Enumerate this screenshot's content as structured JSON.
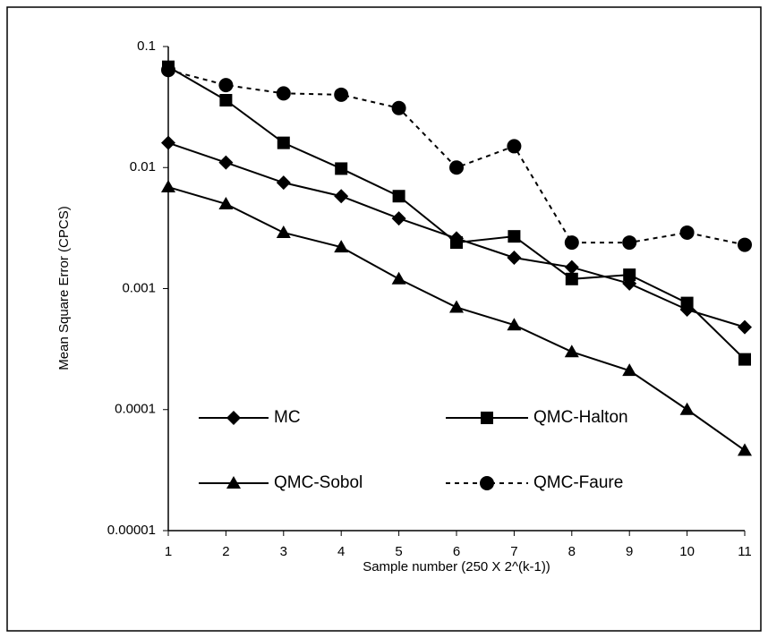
{
  "chart_data": {
    "type": "line",
    "x_label": "Sample number (250 X 2^(k-1))",
    "y_label": "Mean Square Error (CPCS)",
    "x": [
      1,
      2,
      3,
      4,
      5,
      6,
      7,
      8,
      9,
      10,
      11
    ],
    "xlim": [
      1,
      11
    ],
    "xticks": [
      1,
      2,
      3,
      4,
      5,
      6,
      7,
      8,
      9,
      10,
      11
    ],
    "ylim": [
      1e-05,
      0.1
    ],
    "yticks": [
      0.1,
      0.01,
      0.001,
      0.0001,
      1e-05
    ],
    "log_y": true,
    "series": [
      {
        "name": "MC",
        "color": "#000000",
        "marker": "diamond",
        "dashed": false,
        "values": [
          0.016,
          0.011,
          0.0075,
          0.0058,
          0.0038,
          0.0026,
          0.0018,
          0.0015,
          0.0011,
          0.00067,
          0.00048
        ]
      },
      {
        "name": "QMC-Halton",
        "color": "#000000",
        "marker": "square",
        "dashed": false,
        "values": [
          0.068,
          0.036,
          0.016,
          0.0098,
          0.0058,
          0.0024,
          0.0027,
          0.0012,
          0.0013,
          0.00076,
          0.00026
        ]
      },
      {
        "name": "QMC-Sobol",
        "color": "#000000",
        "marker": "triangle",
        "dashed": false,
        "values": [
          0.0069,
          0.005,
          0.0029,
          0.0022,
          0.0012,
          0.0007,
          0.0005,
          0.0003,
          0.00021,
          0.0001,
          4.6e-05
        ]
      },
      {
        "name": "QMC-Faure",
        "color": "#000000",
        "marker": "circle",
        "dashed": true,
        "values": [
          0.064,
          0.048,
          0.041,
          0.04,
          0.031,
          0.01,
          0.015,
          0.0024,
          0.0024,
          0.0029,
          0.0023
        ]
      }
    ]
  }
}
